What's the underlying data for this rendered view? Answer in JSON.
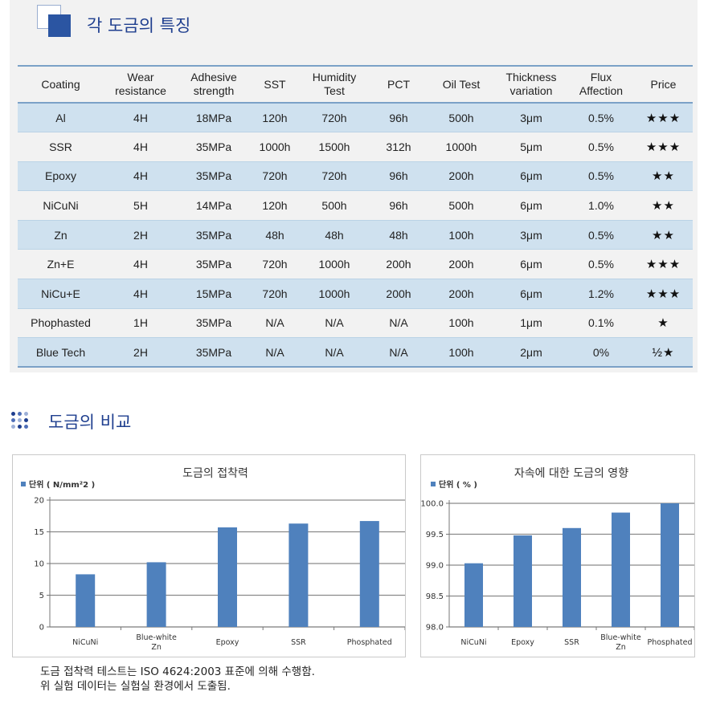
{
  "section1": {
    "title": "각 도금의 특징",
    "columns": [
      [
        "Coating"
      ],
      [
        "Wear",
        "resistance"
      ],
      [
        "Adhesive",
        "strength"
      ],
      [
        "SST"
      ],
      [
        "Humidity",
        "Test"
      ],
      [
        "PCT"
      ],
      [
        "Oil Test"
      ],
      [
        "Thickness",
        "variation"
      ],
      [
        "Flux",
        "Affection"
      ],
      [
        "Price"
      ]
    ],
    "rows": [
      [
        "Al",
        "4H",
        "18MPa",
        "120h",
        "720h",
        "96h",
        "500h",
        "3μm",
        "0.5%",
        "★★★"
      ],
      [
        "SSR",
        "4H",
        "35MPa",
        "1000h",
        "1500h",
        "312h",
        "1000h",
        "5μm",
        "0.5%",
        "★★★"
      ],
      [
        "Epoxy",
        "4H",
        "35MPa",
        "720h",
        "720h",
        "96h",
        "200h",
        "6μm",
        "0.5%",
        "★★"
      ],
      [
        "NiCuNi",
        "5H",
        "14MPa",
        "120h",
        "500h",
        "96h",
        "500h",
        "6μm",
        "1.0%",
        "★★"
      ],
      [
        "Zn",
        "2H",
        "35MPa",
        "48h",
        "48h",
        "48h",
        "100h",
        "3μm",
        "0.5%",
        "★★"
      ],
      [
        "Zn+E",
        "4H",
        "35MPa",
        "720h",
        "1000h",
        "200h",
        "200h",
        "6μm",
        "0.5%",
        "★★★"
      ],
      [
        "NiCu+E",
        "4H",
        "15MPa",
        "720h",
        "1000h",
        "200h",
        "200h",
        "6μm",
        "1.2%",
        "★★★"
      ],
      [
        "Phophasted",
        "1H",
        "35MPa",
        "N/A",
        "N/A",
        "N/A",
        "100h",
        "1μm",
        "0.1%",
        "★"
      ],
      [
        "Blue Tech",
        "2H",
        "35MPa",
        "N/A",
        "N/A",
        "N/A",
        "100h",
        "2μm",
        "0%",
        "½★"
      ]
    ]
  },
  "section2": {
    "title": "도금의 비교"
  },
  "chart_data": [
    {
      "type": "bar",
      "title": "도금의 접착력",
      "legend": "단위 ( N/mm²2 )",
      "legend_placement": "top-left",
      "categories": [
        [
          "NiCuNi"
        ],
        [
          "Blue-white",
          "Zn"
        ],
        [
          "Epoxy"
        ],
        [
          "SSR"
        ],
        [
          "Phosphated"
        ]
      ],
      "values": [
        8.3,
        10.2,
        15.7,
        16.3,
        16.7
      ],
      "yticks": [
        "0",
        "5",
        "10",
        "15",
        "20"
      ],
      "ylim": [
        0,
        20
      ],
      "grid": true,
      "color": "#4f81bd"
    },
    {
      "type": "bar",
      "title": "자속에 대한 도금의 영향",
      "legend": "단위 ( % )",
      "legend_placement": "top-left",
      "categories": [
        [
          "NiCuNi"
        ],
        [
          "Epoxy"
        ],
        [
          "SSR"
        ],
        [
          "Blue-white",
          "Zn"
        ],
        [
          "Phosphated"
        ]
      ],
      "values": [
        99.03,
        99.48,
        99.6,
        99.85,
        100.0
      ],
      "yticks": [
        "98.0",
        "98.5",
        "99.0",
        "99.5",
        "100.0"
      ],
      "ylim": [
        98.0,
        100.0
      ],
      "grid": true,
      "color": "#4f81bd"
    }
  ],
  "footnote": {
    "line1": "도금 접착력 테스트는 ISO 4624:2003 표준에 의해 수행함.",
    "line2": "위 실험 데이터는 실험실 환경에서 도출됨."
  }
}
